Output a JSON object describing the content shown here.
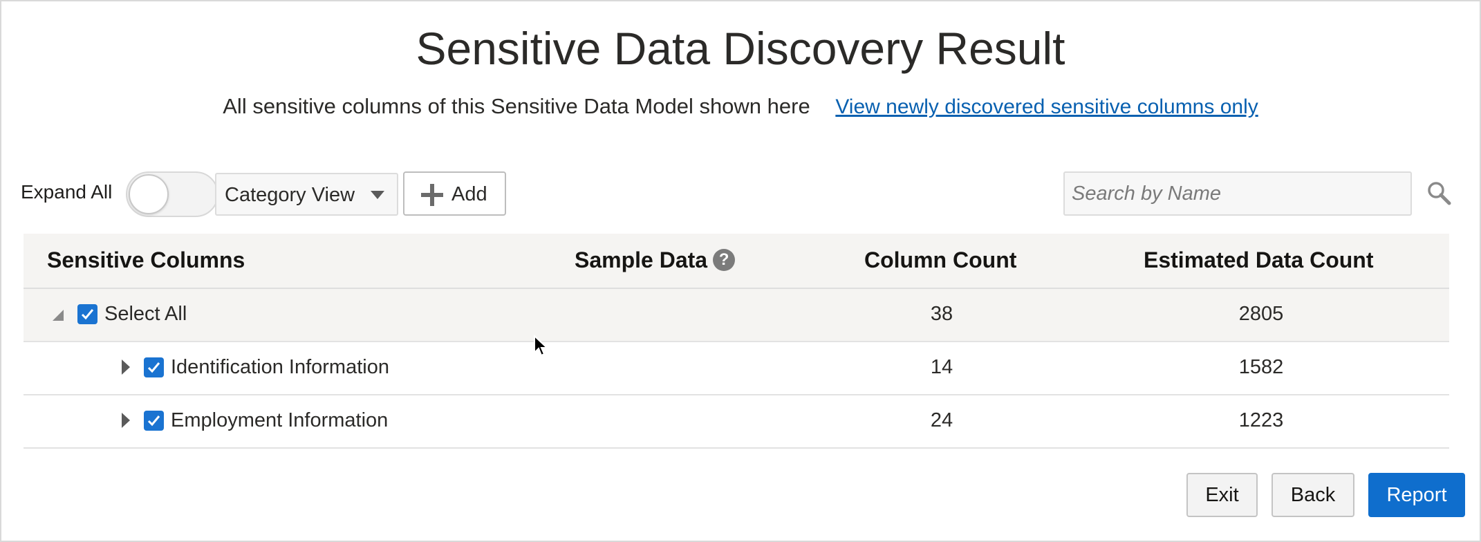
{
  "header": {
    "title": "Sensitive Data Discovery Result",
    "subtitle": "All sensitive columns of this Sensitive Data Model shown here",
    "link": "View newly discovered sensitive columns only"
  },
  "toolbar": {
    "expand_all_label": "Expand All",
    "expand_all_on": false,
    "view_select_value": "Category View",
    "add_label": "Add",
    "search_placeholder": "Search by Name"
  },
  "table": {
    "columns": [
      "Sensitive Columns",
      "Sample Data",
      "Column Count",
      "Estimated Data Count"
    ],
    "rows": [
      {
        "label": "Select All",
        "checked": true,
        "column_count": "38",
        "data_count": "2805"
      },
      {
        "label": "Identification Information",
        "checked": true,
        "column_count": "14",
        "data_count": "1582"
      },
      {
        "label": "Employment Information",
        "checked": true,
        "column_count": "24",
        "data_count": "1223"
      }
    ]
  },
  "footer": {
    "exit_label": "Exit",
    "back_label": "Back",
    "report_label": "Report"
  },
  "colors": {
    "accent": "#0f6ecd",
    "link": "#0860b0",
    "checkbox": "#1a73d1"
  },
  "icons": [
    "search-icon",
    "plus-icon",
    "help-icon",
    "collapse-triangle-icon",
    "expand-triangle-icon",
    "checkmark-icon",
    "caret-down-icon",
    "mouse-cursor-icon"
  ]
}
